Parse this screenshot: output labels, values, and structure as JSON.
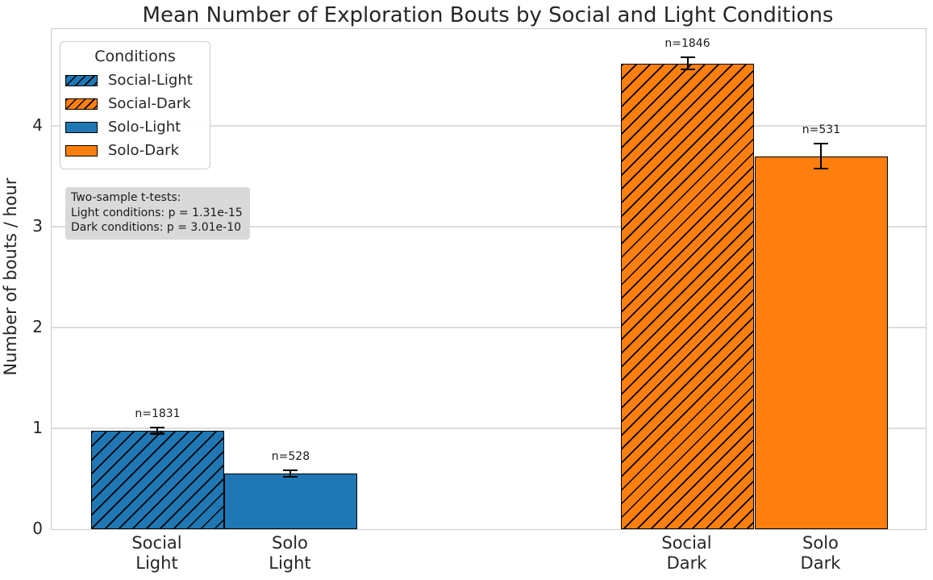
{
  "chart_data": {
    "type": "bar",
    "title": "Mean Number of Exploration Bouts by Social and Light Conditions",
    "ylabel": "Number of bouts / hour",
    "xlabel": "",
    "ylim": [
      0,
      4.96
    ],
    "yticks": [
      0,
      1,
      2,
      3,
      4
    ],
    "grid": "horizontal",
    "legend": {
      "title": "Conditions",
      "position": "upper-left",
      "items": [
        {
          "label": "Social-Light",
          "color": "#1f77b4",
          "hatch": true
        },
        {
          "label": "Social-Dark",
          "color": "#ff7f0e",
          "hatch": true
        },
        {
          "label": "Solo-Light",
          "color": "#1f77b4",
          "hatch": false
        },
        {
          "label": "Solo-Dark",
          "color": "#ff7f0e",
          "hatch": false
        }
      ]
    },
    "bars": [
      {
        "series": "Social-Light",
        "tick_lines": [
          "Social",
          "Light"
        ],
        "mean": 0.98,
        "err": 0.04,
        "n_label": "n=1831",
        "color": "#1f77b4",
        "hatch": true,
        "center_frac": 0.1213
      },
      {
        "series": "Solo-Light",
        "tick_lines": [
          "Solo",
          "Light"
        ],
        "mean": 0.55,
        "err": 0.04,
        "n_label": "n=528",
        "color": "#1f77b4",
        "hatch": false,
        "center_frac": 0.2735
      },
      {
        "series": "Social-Dark",
        "tick_lines": [
          "Social",
          "Dark"
        ],
        "mean": 4.62,
        "err": 0.07,
        "n_label": "n=1846",
        "color": "#ff7f0e",
        "hatch": true,
        "center_frac": 0.7274
      },
      {
        "series": "Solo-Dark",
        "tick_lines": [
          "Solo",
          "Dark"
        ],
        "mean": 3.7,
        "err": 0.13,
        "n_label": "n=531",
        "color": "#ff7f0e",
        "hatch": false,
        "center_frac": 0.8805
      }
    ],
    "annotation": {
      "lines": [
        "Two-sample t-tests:",
        "Light conditions: p = 1.31e-15",
        "Dark conditions: p = 3.01e-10"
      ]
    },
    "colors": {
      "blue": "#1f77b4",
      "orange": "#ff7f0e",
      "grid": "#dcdcdc",
      "spine": "#cccccc",
      "annotation_bg": "#d9d9d9"
    }
  }
}
